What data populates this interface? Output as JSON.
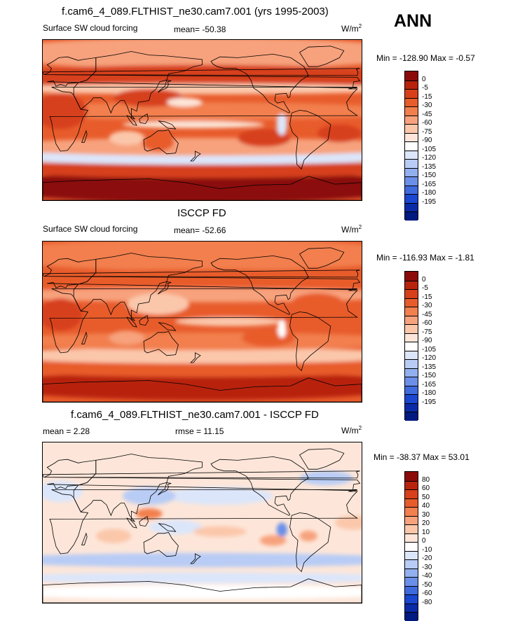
{
  "header": {
    "main_title": "f.cam6_4_089.FLTHIST_ne30.cam7.001 (yrs 1995-2003)",
    "season": "ANN"
  },
  "panels": [
    {
      "id": "model",
      "title": "",
      "left_label": "Surface SW cloud forcing",
      "center_label": "mean= -50.38",
      "units": "W/m",
      "units_sup": "2",
      "minmax": "Min = -128.90 Max =  -0.57",
      "colorbar": {
        "labels": [
          "0",
          "-5",
          "-15",
          "-30",
          "-45",
          "-60",
          "-75",
          "-90",
          "-105",
          "-120",
          "-135",
          "-150",
          "-165",
          "-180",
          "-195"
        ],
        "colors": [
          "#8b0a0a",
          "#b8230e",
          "#d7401a",
          "#e85c2c",
          "#f27f4e",
          "#f7a27d",
          "#fbc7ab",
          "#fde6d9",
          "#ffffff",
          "#dbe6fb",
          "#b8ccf5",
          "#92b0ef",
          "#6b8fe8",
          "#3f6ade",
          "#1a46d0",
          "#0a2aa8",
          "#001a80"
        ]
      }
    },
    {
      "id": "obs",
      "title": "ISCCP FD",
      "left_label": "Surface SW cloud forcing",
      "center_label": "mean= -52.66",
      "units": "W/m",
      "units_sup": "2",
      "minmax": "Min = -116.93 Max =  -1.81",
      "colorbar": {
        "labels": [
          "0",
          "-5",
          "-15",
          "-30",
          "-45",
          "-60",
          "-75",
          "-90",
          "-105",
          "-120",
          "-135",
          "-150",
          "-165",
          "-180",
          "-195"
        ],
        "colors": [
          "#8b0a0a",
          "#b8230e",
          "#d7401a",
          "#e85c2c",
          "#f27f4e",
          "#f7a27d",
          "#fbc7ab",
          "#fde6d9",
          "#ffffff",
          "#dbe6fb",
          "#b8ccf5",
          "#92b0ef",
          "#6b8fe8",
          "#3f6ade",
          "#1a46d0",
          "#0a2aa8",
          "#001a80"
        ]
      }
    },
    {
      "id": "diff",
      "title": "f.cam6_4_089.FLTHIST_ne30.cam7.001 - ISCCP FD",
      "left_label": "mean =  2.28",
      "center_label": "rmse =  11.15",
      "units": "W/m",
      "units_sup": "2",
      "minmax": "Min = -38.37 Max =  53.01",
      "colorbar": {
        "labels": [
          "80",
          "60",
          "50",
          "40",
          "30",
          "20",
          "10",
          "0",
          "-10",
          "-20",
          "-30",
          "-40",
          "-50",
          "-60",
          "-80"
        ],
        "colors": [
          "#8b0a0a",
          "#b8230e",
          "#d7401a",
          "#e85c2c",
          "#f27f4e",
          "#f7a27d",
          "#fbc7ab",
          "#fde6d9",
          "#ffffff",
          "#dbe6fb",
          "#b8ccf5",
          "#92b0ef",
          "#6b8fe8",
          "#3f6ade",
          "#1a46d0",
          "#0a2aa8",
          "#001a80"
        ]
      }
    }
  ],
  "colors": {
    "land_outline": "#000000",
    "diff_background": "#fde6d9"
  }
}
